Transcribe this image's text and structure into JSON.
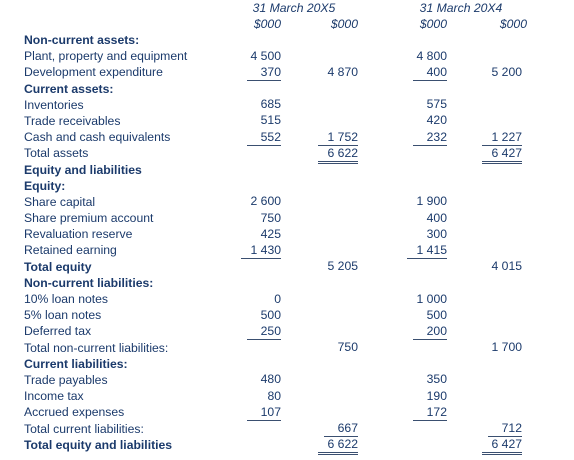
{
  "header": {
    "period_1": "31 March 20X5",
    "period_2": "31 March 20X4",
    "unit": "$000"
  },
  "rows": [
    {
      "label": "Non-current assets:",
      "bold": true
    },
    {
      "label": "Plant, property and equipment",
      "c1": "4 500",
      "c3": "4 800"
    },
    {
      "label": "Development expenditure",
      "c1": "370",
      "c1_line": "ul",
      "c2": "4 870",
      "c3": "400",
      "c3_line": "ul",
      "c4": "5 200"
    },
    {
      "label": "Current assets:",
      "bold": true
    },
    {
      "label": "Inventories",
      "c1": "685",
      "c3": "575"
    },
    {
      "label": "Trade receivables",
      "c1": "515",
      "c3": "420"
    },
    {
      "label": "Cash and cash equivalents",
      "c1": "552",
      "c1_line": "ul",
      "c2": "1 752",
      "c2_line": "ul",
      "c3": "232",
      "c3_line": "ul",
      "c4": "1 227",
      "c4_line": "ul"
    },
    {
      "label": "Total assets",
      "c2": "6 622",
      "c2_line": "dul",
      "c4": "6 427",
      "c4_line": "dul"
    },
    {
      "label": "Equity and liabilities",
      "bold": true
    },
    {
      "label": "Equity:",
      "bold": true
    },
    {
      "label": "Share capital",
      "c1": "2 600",
      "c3": "1 900"
    },
    {
      "label": "Share premium account",
      "c1": "750",
      "c3": "400"
    },
    {
      "label": "Revaluation reserve",
      "c1": "425",
      "c3": "300"
    },
    {
      "label": "Retained earning",
      "c1": "1 430",
      "c1_line": "ul",
      "c3": "1 415",
      "c3_line": "ul"
    },
    {
      "label": "Total equity",
      "bold": true,
      "c2": "5 205",
      "c4": "4 015"
    },
    {
      "label": "Non-current liabilities:",
      "bold": true
    },
    {
      "label": "10% loan notes",
      "c1": "0",
      "c3": "1 000"
    },
    {
      "label": "5% loan notes",
      "c1": "500",
      "c3": "500"
    },
    {
      "label": "Deferred tax",
      "c1": "250",
      "c1_line": "ul",
      "c3": "200",
      "c3_line": "ul"
    },
    {
      "label": "Total non-current liabilities:",
      "c2": "750",
      "c4": "1 700"
    },
    {
      "label": "Current liabilities:",
      "bold": true
    },
    {
      "label": "Trade payables",
      "c1": "480",
      "c3": "350"
    },
    {
      "label": "Income tax",
      "c1": "80",
      "c3": "190"
    },
    {
      "label": "Accrued expenses",
      "c1": "107",
      "c1_line": "ul",
      "c3": "172",
      "c3_line": "ul"
    },
    {
      "label": "Total current liabilities:",
      "c2": "667",
      "c2_line": "ul",
      "c4": "712",
      "c4_line": "ul"
    },
    {
      "label": "Total equity and liabilities",
      "bold": true,
      "c2": "6 622",
      "c2_line": "dul",
      "c4": "6 427",
      "c4_line": "dul"
    }
  ]
}
